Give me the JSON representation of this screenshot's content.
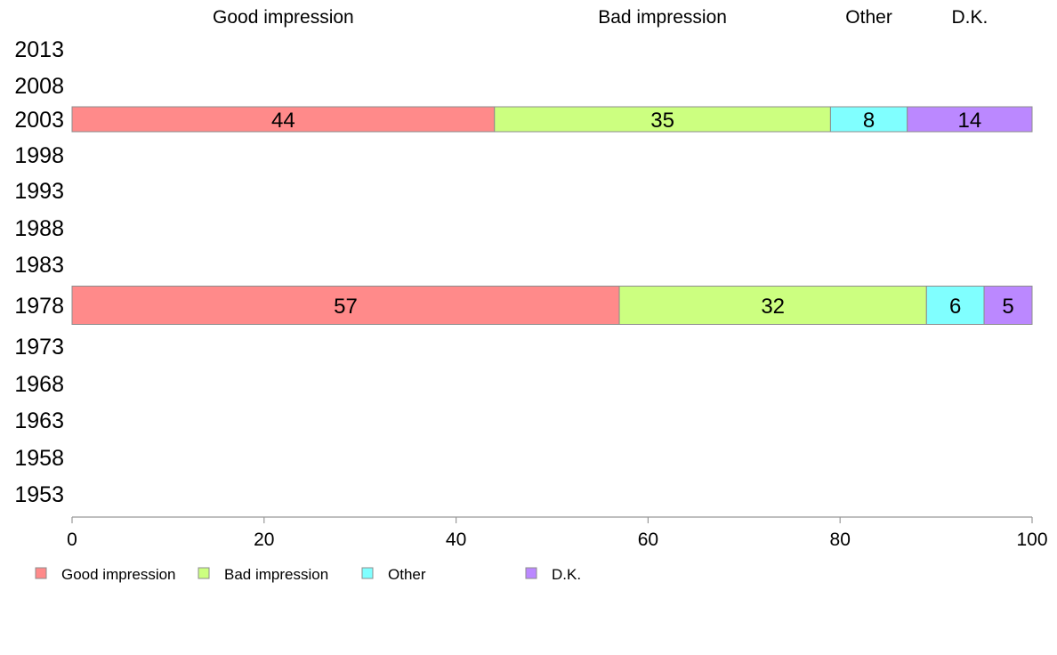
{
  "chart_data": {
    "type": "bar",
    "orientation": "horizontal",
    "stacked": true,
    "categories": [
      "2013",
      "2008",
      "2003",
      "1998",
      "1993",
      "1988",
      "1983",
      "1978",
      "1973",
      "1968",
      "1963",
      "1958",
      "1953"
    ],
    "series": [
      {
        "name": "Good impression",
        "color": "#ff8a8a",
        "values": [
          null,
          null,
          44,
          null,
          null,
          null,
          null,
          57,
          null,
          null,
          null,
          null,
          null
        ]
      },
      {
        "name": "Bad impression",
        "color": "#ccff80",
        "values": [
          null,
          null,
          35,
          null,
          null,
          null,
          null,
          32,
          null,
          null,
          null,
          null,
          null
        ]
      },
      {
        "name": "Other",
        "color": "#80ffff",
        "values": [
          null,
          null,
          8,
          null,
          null,
          null,
          null,
          6,
          null,
          null,
          null,
          null,
          null
        ]
      },
      {
        "name": "D.K.",
        "color": "#bb88ff",
        "values": [
          null,
          null,
          14,
          null,
          null,
          null,
          null,
          5,
          null,
          null,
          null,
          null,
          null
        ]
      }
    ],
    "xlim": [
      0,
      100
    ],
    "xticks": [
      0,
      20,
      40,
      60,
      80,
      100
    ],
    "grid": false,
    "legend_position": "bottom-left"
  }
}
